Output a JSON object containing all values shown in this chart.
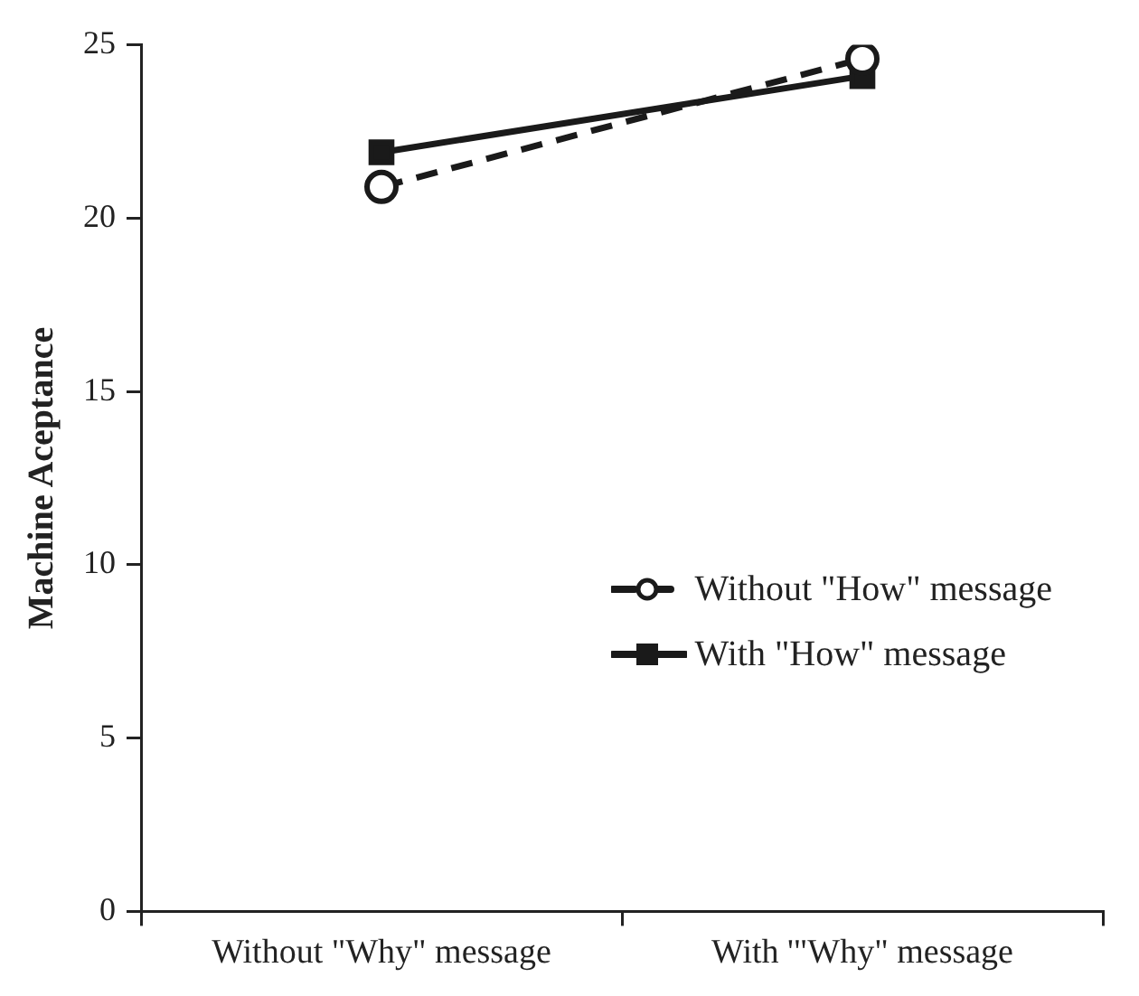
{
  "chart_data": {
    "type": "line",
    "ylabel": "Machine Aceptance",
    "categories": [
      "Without \"Why\" message",
      "With '\"Why\" message"
    ],
    "series": [
      {
        "name": "Without \"How\" message",
        "color": "#1a1a1a",
        "values": [
          20.9,
          24.6
        ],
        "marker": "circle",
        "line_style": "dashed"
      },
      {
        "name": "With \"How\" message",
        "color": "#1a1a1a",
        "values": [
          21.9,
          24.1
        ],
        "marker": "square",
        "line_style": "solid"
      }
    ],
    "ylim": [
      0,
      25
    ],
    "yticks": [
      0,
      5,
      10,
      15,
      20,
      25
    ],
    "grid": false,
    "legend": "right"
  }
}
